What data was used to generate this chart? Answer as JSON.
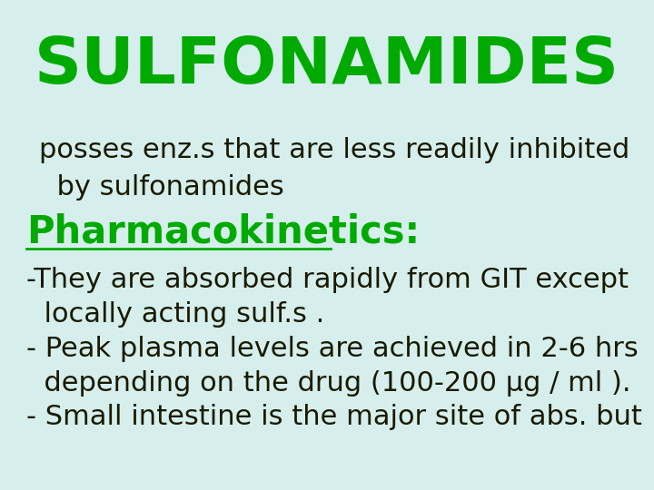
{
  "background_color": "#d6efed",
  "title": "SULFONAMIDES",
  "title_color": "#00aa00",
  "title_fontsize": 52,
  "body_dark_color": "#1a1a00",
  "line1": "posses enz.s that are less readily inhibited",
  "line2": "  by sulfonamides",
  "pharmacokinetics_label": "Pharmacokinetics:",
  "pk_color": "#00aa00",
  "pk_fontsize": 30,
  "bullet1_line1": "-They are absorbed rapidly from GIT except",
  "bullet1_line2": "  locally acting sulf.s .",
  "bullet2_line1": "- Peak plasma levels are achieved in 2-6 hrs",
  "bullet2_line2": "  depending on the drug (100-200 μg / ml ).",
  "bullet3": "- Small intestine is the major site of abs. but",
  "body_fontsize": 22,
  "figwidth": 7.2,
  "figheight": 5.4,
  "dpi": 100
}
